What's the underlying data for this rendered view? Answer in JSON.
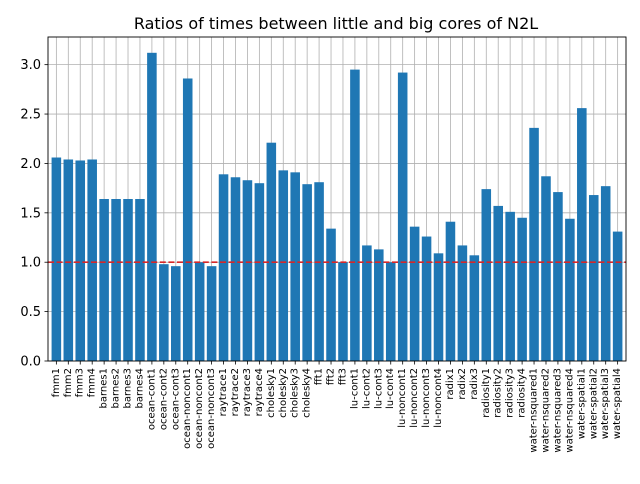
{
  "chart_data": {
    "type": "bar",
    "title": "Ratios of times between little and big cores of N2L",
    "xlabel": "",
    "ylabel": "",
    "ylim": [
      0,
      3.28
    ],
    "yticks": [
      "0.0",
      "0.5",
      "1.0",
      "1.5",
      "2.0",
      "2.5",
      "3.0"
    ],
    "grid": true,
    "bar_color": "#1f77b4",
    "reference_line": {
      "y": 1.0,
      "color": "#d62728",
      "style": "dashed"
    },
    "categories": [
      "fmm1",
      "fmm2",
      "fmm3",
      "fmm4",
      "barnes1",
      "barnes2",
      "barnes3",
      "barnes4",
      "ocean-cont1",
      "ocean-cont2",
      "ocean-cont3",
      "ocean-noncont1",
      "ocean-noncont2",
      "ocean-noncont3",
      "raytrace1",
      "raytrace2",
      "raytrace3",
      "raytrace4",
      "cholesky1",
      "cholesky2",
      "cholesky3",
      "cholesky4",
      "fft1",
      "fft2",
      "fft3",
      "lu-cont1",
      "lu-cont2",
      "lu-cont3",
      "lu-cont4",
      "lu-noncont1",
      "lu-noncont2",
      "lu-noncont3",
      "lu-noncont4",
      "radix1",
      "radix2",
      "radix3",
      "radiosity1",
      "radiosity2",
      "radiosity3",
      "radiosity4",
      "water-nsquared1",
      "water-nsquared2",
      "water-nsquared3",
      "water-nsquared4",
      "water-spatial1",
      "water-spatial2",
      "water-spatial3",
      "water-spatial4"
    ],
    "values": [
      2.06,
      2.04,
      2.03,
      2.04,
      1.64,
      1.64,
      1.64,
      1.64,
      3.12,
      0.98,
      0.96,
      2.86,
      1.0,
      0.96,
      1.89,
      1.86,
      1.83,
      1.8,
      2.21,
      1.93,
      1.91,
      1.79,
      1.81,
      1.34,
      1.0,
      2.95,
      1.17,
      1.13,
      1.0,
      2.92,
      1.36,
      1.26,
      1.09,
      1.41,
      1.17,
      1.07,
      1.74,
      1.57,
      1.51,
      1.45,
      2.36,
      1.87,
      1.71,
      1.44,
      2.56,
      1.68,
      1.77,
      1.31
    ]
  }
}
